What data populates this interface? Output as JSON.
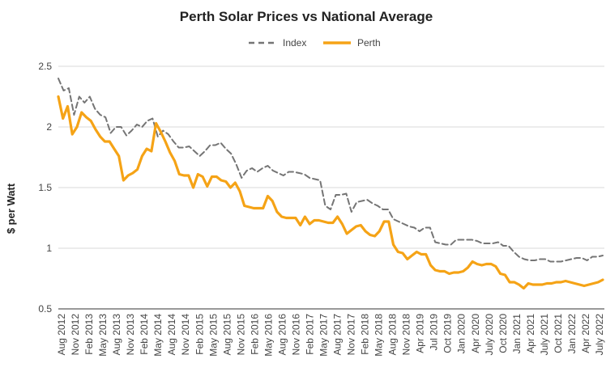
{
  "chart_data": {
    "type": "line",
    "title": "Perth Solar Prices vs National Average",
    "xlabel": "",
    "ylabel": "$ per Watt",
    "ylim": [
      0.5,
      2.5
    ],
    "yticks": [
      "0.5",
      "1",
      "1.5",
      "2",
      "2.5"
    ],
    "grid": "horizontal",
    "legend_position": "top",
    "x_tick_labels": [
      "Aug 2012",
      "Nov 2012",
      "Feb 2013",
      "May 2013",
      "Aug 2013",
      "Nov 2013",
      "Feb 2014",
      "May 2014",
      "Aug 2014",
      "Nov 2014",
      "Feb 2015",
      "May 2015",
      "Aug 2015",
      "Nov 2015",
      "Feb 2016",
      "May 2016",
      "Aug 2016",
      "Nov 2016",
      "Feb 2017",
      "May 2017",
      "Aug 2017",
      "Nov 2017",
      "Feb 2018",
      "May 2018",
      "Aug 2018",
      "Nov 2018",
      "Apr 2019",
      "Jul 2019",
      "Oct 2019",
      "Jan 2020",
      "Apr 2020",
      "July 2020",
      "Oct 2020",
      "Jan 2021",
      "Apr 2021",
      "July 2021",
      "Oct 2021",
      "Jan 2022",
      "Apr 2022",
      "July 2022"
    ],
    "series": [
      {
        "name": "Index",
        "color": "#757575",
        "dash": true,
        "values": [
          2.4,
          2.3,
          2.32,
          2.1,
          2.25,
          2.2,
          2.25,
          2.15,
          2.1,
          2.08,
          1.95,
          2.0,
          2.0,
          1.93,
          1.97,
          2.02,
          2.0,
          2.05,
          2.07,
          1.92,
          1.97,
          1.94,
          1.88,
          1.83,
          1.83,
          1.84,
          1.8,
          1.76,
          1.8,
          1.85,
          1.85,
          1.87,
          1.82,
          1.78,
          1.69,
          1.58,
          1.64,
          1.66,
          1.63,
          1.66,
          1.68,
          1.64,
          1.62,
          1.6,
          1.63,
          1.63,
          1.62,
          1.61,
          1.58,
          1.57,
          1.56,
          1.35,
          1.32,
          1.44,
          1.44,
          1.45,
          1.3,
          1.38,
          1.39,
          1.4,
          1.37,
          1.35,
          1.32,
          1.32,
          1.24,
          1.22,
          1.2,
          1.18,
          1.17,
          1.14,
          1.17,
          1.17,
          1.05,
          1.04,
          1.03,
          1.03,
          1.07,
          1.07,
          1.07,
          1.07,
          1.06,
          1.04,
          1.04,
          1.04,
          1.05,
          1.02,
          1.02,
          0.97,
          0.93,
          0.91,
          0.9,
          0.9,
          0.91,
          0.91,
          0.89,
          0.89,
          0.89,
          0.9,
          0.91,
          0.92,
          0.92,
          0.9,
          0.93,
          0.93,
          0.94
        ],
        "note": ""
      },
      {
        "name": "Perth",
        "color": "#F5A316",
        "dash": false,
        "values": [
          2.25,
          2.07,
          2.17,
          1.94,
          2.0,
          2.12,
          2.08,
          2.05,
          1.98,
          1.92,
          1.88,
          1.88,
          1.82,
          1.76,
          1.56,
          1.6,
          1.62,
          1.65,
          1.76,
          1.82,
          1.8,
          2.03,
          1.96,
          1.88,
          1.79,
          1.72,
          1.61,
          1.6,
          1.6,
          1.5,
          1.61,
          1.59,
          1.51,
          1.59,
          1.59,
          1.56,
          1.55,
          1.5,
          1.54,
          1.47,
          1.35,
          1.34,
          1.33,
          1.33,
          1.33,
          1.43,
          1.39,
          1.3,
          1.26,
          1.25,
          1.25,
          1.25,
          1.19,
          1.26,
          1.2,
          1.23,
          1.23,
          1.22,
          1.21,
          1.21,
          1.26,
          1.2,
          1.12,
          1.15,
          1.18,
          1.19,
          1.14,
          1.11,
          1.1,
          1.14,
          1.22,
          1.22,
          1.03,
          0.97,
          0.96,
          0.91,
          0.94,
          0.97,
          0.95,
          0.95,
          0.86,
          0.82,
          0.81,
          0.81,
          0.79,
          0.8,
          0.8,
          0.81,
          0.84,
          0.89,
          0.87,
          0.86,
          0.87,
          0.87,
          0.85,
          0.79,
          0.78,
          0.72,
          0.72,
          0.7,
          0.67,
          0.71,
          0.7,
          0.7,
          0.7,
          0.71,
          0.71,
          0.72,
          0.72,
          0.73,
          0.72,
          0.71,
          0.7,
          0.69,
          0.7,
          0.71,
          0.72,
          0.74
        ]
      }
    ]
  }
}
